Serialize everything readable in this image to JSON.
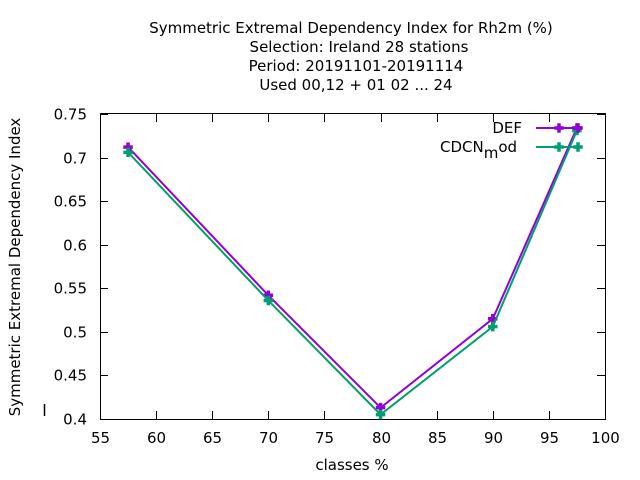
{
  "chart_data": {
    "type": "line",
    "title_lines": [
      "Symmetric Extremal Dependency Index  for Rh2m (%)",
      "Selection: Ireland     28 stations",
      "Period: 20191101-20191114",
      "Used  00,12  + 01 02 ... 24"
    ],
    "xlabel": "classes %",
    "ylabel": "Symmetric Extremal Dependency Index",
    "xlim": [
      55,
      100
    ],
    "ylim": [
      0.4,
      0.75
    ],
    "xticks": [
      "55",
      "60",
      "65",
      "70",
      "75",
      "80",
      "85",
      "90",
      "95",
      "100"
    ],
    "yticks": [
      "0.4",
      "0.45",
      "0.5",
      "0.55",
      "0.6",
      "0.65",
      "0.7",
      "0.75"
    ],
    "legend_position": "top-right",
    "grid": false,
    "series": [
      {
        "name": "DEF",
        "color": "#9400d3",
        "x": [
          57.5,
          70,
          80,
          90,
          97.5
        ],
        "y": [
          0.712,
          0.542,
          0.413,
          0.515,
          0.734
        ]
      },
      {
        "name_main": "CDCN",
        "name_sub": "m",
        "name_tail": "od",
        "color": "#009e73",
        "x": [
          57.5,
          70,
          80,
          90,
          97.5
        ],
        "y": [
          0.706,
          0.536,
          0.405,
          0.506,
          0.731
        ]
      }
    ]
  }
}
